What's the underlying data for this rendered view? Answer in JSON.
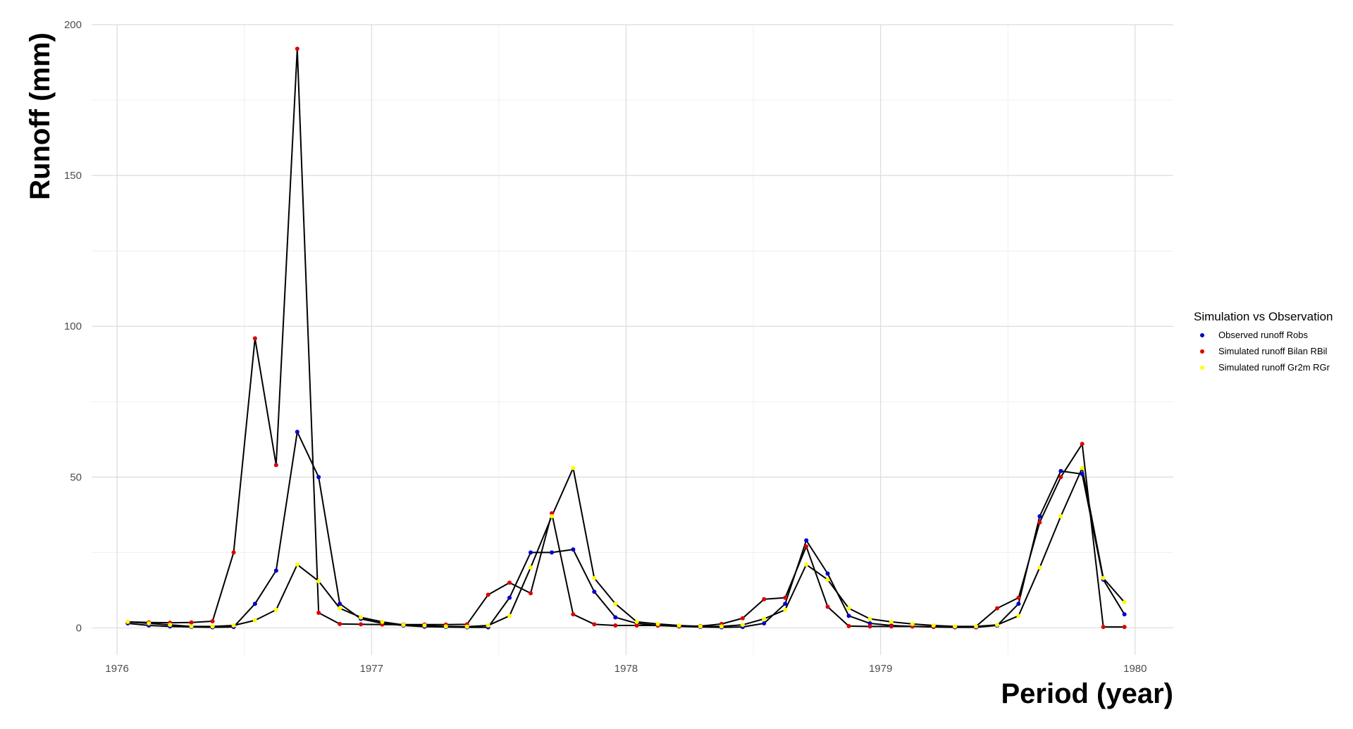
{
  "chart_data": {
    "type": "line",
    "title": "",
    "xlabel": "Period (year)",
    "ylabel": "Runoff (mm)",
    "xlim": [
      1975.9,
      1980.15
    ],
    "ylim": [
      -9,
      200
    ],
    "x_ticks": [
      1976,
      1977,
      1978,
      1979,
      1980
    ],
    "y_ticks": [
      0,
      50,
      100,
      150,
      200
    ],
    "grid": true,
    "legend": {
      "title": "Simulation vs Observation",
      "placement": "right"
    },
    "x": [
      1976.042,
      1976.125,
      1976.208,
      1976.292,
      1976.375,
      1976.458,
      1976.542,
      1976.625,
      1976.708,
      1976.792,
      1976.875,
      1976.958,
      1977.042,
      1977.125,
      1977.208,
      1977.292,
      1977.375,
      1977.458,
      1977.542,
      1977.625,
      1977.708,
      1977.792,
      1977.875,
      1977.958,
      1978.042,
      1978.125,
      1978.208,
      1978.292,
      1978.375,
      1978.458,
      1978.542,
      1978.625,
      1978.708,
      1978.792,
      1978.875,
      1978.958,
      1979.042,
      1979.125,
      1979.208,
      1979.292,
      1979.375,
      1979.458,
      1979.542,
      1979.625,
      1979.708,
      1979.792,
      1979.875,
      1979.958
    ],
    "series": [
      {
        "name": "Observed runoff Robs",
        "color": "#0000cc",
        "values": [
          1.5,
          0.8,
          0.5,
          0.3,
          0.2,
          0.3,
          8,
          19,
          65,
          50,
          8,
          3,
          1.5,
          0.8,
          0.4,
          0.3,
          0.2,
          0.2,
          10,
          25,
          25,
          26,
          12,
          3.5,
          1.5,
          0.8,
          0.5,
          0.3,
          0.2,
          0.3,
          1.5,
          8,
          29,
          18,
          4,
          1.5,
          0.8,
          0.5,
          0.3,
          0.2,
          0.2,
          0.8,
          8,
          37,
          52,
          51,
          16,
          4.5
        ]
      },
      {
        "name": "Simulated runoff Bilan RBil",
        "color": "#dd0000",
        "values": [
          2,
          1.8,
          1.7,
          1.8,
          2.2,
          25,
          96,
          54,
          192,
          5,
          1.3,
          1.2,
          1.1,
          1.1,
          1.1,
          1.1,
          1.2,
          11,
          15,
          11.5,
          38,
          4.5,
          1.2,
          0.8,
          0.8,
          0.8,
          0.6,
          0.6,
          1.3,
          3.2,
          9.5,
          10,
          27,
          7,
          0.6,
          0.5,
          0.5,
          0.5,
          0.4,
          0.4,
          0.5,
          6.5,
          10,
          35,
          50,
          61,
          0.3,
          0.3
        ]
      },
      {
        "name": "Simulated runoff Gr2m RGr",
        "color": "#ffff00",
        "values": [
          2,
          1.5,
          1,
          0.5,
          0.5,
          0.8,
          2.5,
          6,
          21,
          15.5,
          6.5,
          3.5,
          2,
          1,
          0.8,
          0.5,
          0.4,
          0.8,
          4,
          20,
          37,
          53,
          16.5,
          8,
          2,
          1.3,
          0.8,
          0.5,
          0.5,
          1,
          3,
          6,
          21,
          16,
          6.5,
          3,
          2,
          1.3,
          0.8,
          0.5,
          0.5,
          1,
          4,
          20,
          37,
          53,
          16.5,
          8.5
        ]
      }
    ]
  }
}
